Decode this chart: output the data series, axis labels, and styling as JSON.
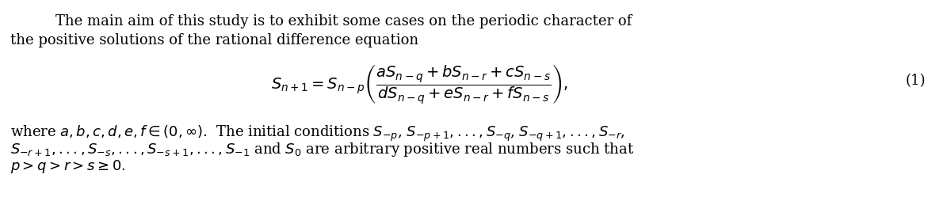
{
  "background_color": "#ffffff",
  "figsize": [
    12.0,
    2.78
  ],
  "dpi": 100,
  "text_color": "#000000",
  "font_size_body": 13,
  "font_size_eq": 13,
  "font_size_label": 13,
  "line1": "The main aim of this study is to exhibit some cases on the periodic character of",
  "line2": "the positive solutions of the rational difference equation",
  "eq_label": "(1)",
  "para2_l1": "where $a, b, c, d, e, f \\in (0, \\infty)$.  The initial conditions $S_{-p}$, $S_{-p+1},...,S_{-q}$, $S_{-q+1},...,S_{-r}$,",
  "para2_l2": "$S_{-r+1},...,S_{-s},...,S_{-s+1},...,S_{-1}$ and $S_0$ are arbitrary positive real numbers such that",
  "para2_l3": "$p > q > r > s \\geq 0.$"
}
